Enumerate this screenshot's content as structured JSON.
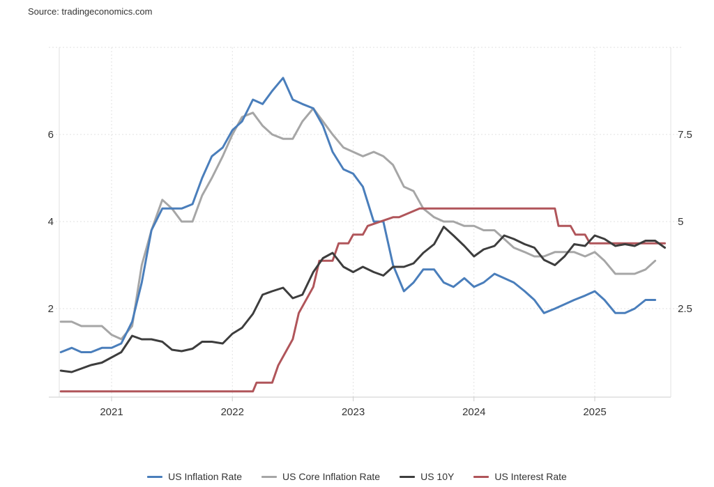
{
  "source": "Source: tradingeconomics.com",
  "chart_data": {
    "type": "line",
    "title": "",
    "xlabel": "",
    "ylabel": "",
    "x_ticks": [
      "2021",
      "2022",
      "2023",
      "2024",
      "2025"
    ],
    "y_left_ticks": [
      "2",
      "4",
      "6"
    ],
    "y_right_ticks": [
      "2.5",
      "5",
      "7.5"
    ],
    "y_left_range": [
      0,
      8
    ],
    "y_right_range": [
      0,
      10
    ],
    "grid": true,
    "legend_position": "bottom",
    "series": [
      {
        "name": "US Inflation Rate",
        "axis": "left",
        "color": "#4a7ebb",
        "x": [
          2020.58,
          2020.67,
          2020.75,
          2020.83,
          2020.92,
          2021.0,
          2021.08,
          2021.17,
          2021.25,
          2021.33,
          2021.42,
          2021.5,
          2021.58,
          2021.67,
          2021.75,
          2021.83,
          2021.92,
          2022.0,
          2022.08,
          2022.17,
          2022.25,
          2022.33,
          2022.42,
          2022.5,
          2022.58,
          2022.67,
          2022.75,
          2022.83,
          2022.92,
          2023.0,
          2023.08,
          2023.17,
          2023.25,
          2023.33,
          2023.42,
          2023.5,
          2023.58,
          2023.67,
          2023.75,
          2023.83,
          2023.92,
          2024.0,
          2024.08,
          2024.17,
          2024.25,
          2024.33,
          2024.42,
          2024.5,
          2024.58,
          2024.67,
          2024.75,
          2024.83,
          2024.92,
          2025.0,
          2025.08,
          2025.17,
          2025.25,
          2025.33,
          2025.42,
          2025.5
        ],
        "y": [
          1.0,
          1.1,
          1.0,
          1.0,
          1.1,
          1.1,
          1.2,
          1.7,
          2.6,
          3.8,
          4.3,
          4.3,
          4.3,
          4.4,
          5.0,
          5.5,
          5.7,
          6.1,
          6.3,
          6.8,
          6.7,
          7.0,
          7.3,
          6.8,
          6.7,
          6.6,
          6.2,
          5.6,
          5.2,
          5.1,
          4.8,
          4.0,
          4.0,
          3.0,
          2.4,
          2.6,
          2.9,
          2.9,
          2.6,
          2.5,
          2.7,
          2.5,
          2.6,
          2.8,
          2.7,
          2.6,
          2.4,
          2.2,
          1.9,
          2.0,
          2.1,
          2.2,
          2.3,
          2.4,
          2.2,
          1.9,
          1.9,
          2.0,
          2.2,
          2.2
        ]
      },
      {
        "name": "US Core Inflation Rate",
        "axis": "left",
        "color": "#a6a6a6",
        "x": [
          2020.58,
          2020.67,
          2020.75,
          2020.83,
          2020.92,
          2021.0,
          2021.08,
          2021.17,
          2021.25,
          2021.33,
          2021.42,
          2021.5,
          2021.58,
          2021.67,
          2021.75,
          2021.83,
          2021.92,
          2022.0,
          2022.08,
          2022.17,
          2022.25,
          2022.33,
          2022.42,
          2022.5,
          2022.58,
          2022.67,
          2022.75,
          2022.83,
          2022.92,
          2023.0,
          2023.08,
          2023.17,
          2023.25,
          2023.33,
          2023.42,
          2023.5,
          2023.58,
          2023.67,
          2023.75,
          2023.83,
          2023.92,
          2024.0,
          2024.08,
          2024.17,
          2024.25,
          2024.33,
          2024.42,
          2024.5,
          2024.58,
          2024.67,
          2024.75,
          2024.83,
          2024.92,
          2025.0,
          2025.08,
          2025.17,
          2025.25,
          2025.33,
          2025.42,
          2025.5
        ],
        "y": [
          1.7,
          1.7,
          1.6,
          1.6,
          1.6,
          1.4,
          1.3,
          1.6,
          3.0,
          3.8,
          4.5,
          4.3,
          4.0,
          4.0,
          4.6,
          5.0,
          5.5,
          6.0,
          6.4,
          6.5,
          6.2,
          6.0,
          5.9,
          5.9,
          6.3,
          6.6,
          6.3,
          6.0,
          5.7,
          5.6,
          5.5,
          5.6,
          5.5,
          5.3,
          4.8,
          4.7,
          4.3,
          4.1,
          4.0,
          4.0,
          3.9,
          3.9,
          3.8,
          3.8,
          3.6,
          3.4,
          3.3,
          3.2,
          3.2,
          3.3,
          3.3,
          3.3,
          3.2,
          3.3,
          3.1,
          2.8,
          2.8,
          2.8,
          2.9,
          3.1
        ]
      },
      {
        "name": "US 10Y",
        "axis": "right",
        "color": "#3d3d3d",
        "x": [
          2020.58,
          2020.67,
          2020.75,
          2020.83,
          2020.92,
          2021.0,
          2021.08,
          2021.17,
          2021.25,
          2021.33,
          2021.42,
          2021.5,
          2021.58,
          2021.67,
          2021.75,
          2021.83,
          2021.92,
          2022.0,
          2022.08,
          2022.17,
          2022.25,
          2022.33,
          2022.42,
          2022.5,
          2022.58,
          2022.67,
          2022.75,
          2022.83,
          2022.92,
          2023.0,
          2023.08,
          2023.17,
          2023.25,
          2023.33,
          2023.42,
          2023.5,
          2023.58,
          2023.67,
          2023.75,
          2023.83,
          2023.92,
          2024.0,
          2024.08,
          2024.17,
          2024.25,
          2024.33,
          2024.42,
          2024.5,
          2024.58,
          2024.67,
          2024.75,
          2024.83,
          2024.92,
          2025.0,
          2025.08,
          2025.17,
          2025.25,
          2025.33,
          2025.42,
          2025.5,
          2025.58
        ],
        "y": [
          0.72,
          0.68,
          0.78,
          0.88,
          0.95,
          1.1,
          1.25,
          1.72,
          1.62,
          1.62,
          1.55,
          1.32,
          1.28,
          1.35,
          1.55,
          1.55,
          1.5,
          1.78,
          1.95,
          2.35,
          2.9,
          3.0,
          3.1,
          2.8,
          2.9,
          3.55,
          3.95,
          4.1,
          3.7,
          3.55,
          3.7,
          3.55,
          3.45,
          3.7,
          3.7,
          3.8,
          4.1,
          4.35,
          4.85,
          4.6,
          4.3,
          4.0,
          4.2,
          4.3,
          4.6,
          4.5,
          4.35,
          4.25,
          3.9,
          3.75,
          4.0,
          4.35,
          4.3,
          4.6,
          4.5,
          4.3,
          4.35,
          4.3,
          4.45,
          4.45,
          4.25
        ]
      },
      {
        "name": "US Interest Rate",
        "axis": "right",
        "color": "#b0555a",
        "x": [
          2020.58,
          2022.17,
          2022.2,
          2022.33,
          2022.38,
          2022.5,
          2022.55,
          2022.67,
          2022.72,
          2022.83,
          2022.88,
          2022.96,
          2023.0,
          2023.08,
          2023.12,
          2023.33,
          2023.38,
          2023.55,
          2023.6,
          2024.67,
          2024.7,
          2024.8,
          2024.84,
          2024.92,
          2024.96,
          2025.58
        ],
        "y": [
          0.125,
          0.125,
          0.375,
          0.375,
          0.875,
          1.625,
          2.375,
          3.125,
          3.875,
          3.875,
          4.375,
          4.375,
          4.625,
          4.625,
          4.875,
          5.125,
          5.125,
          5.375,
          5.375,
          5.375,
          4.875,
          4.875,
          4.625,
          4.625,
          4.375,
          4.375
        ]
      }
    ]
  }
}
